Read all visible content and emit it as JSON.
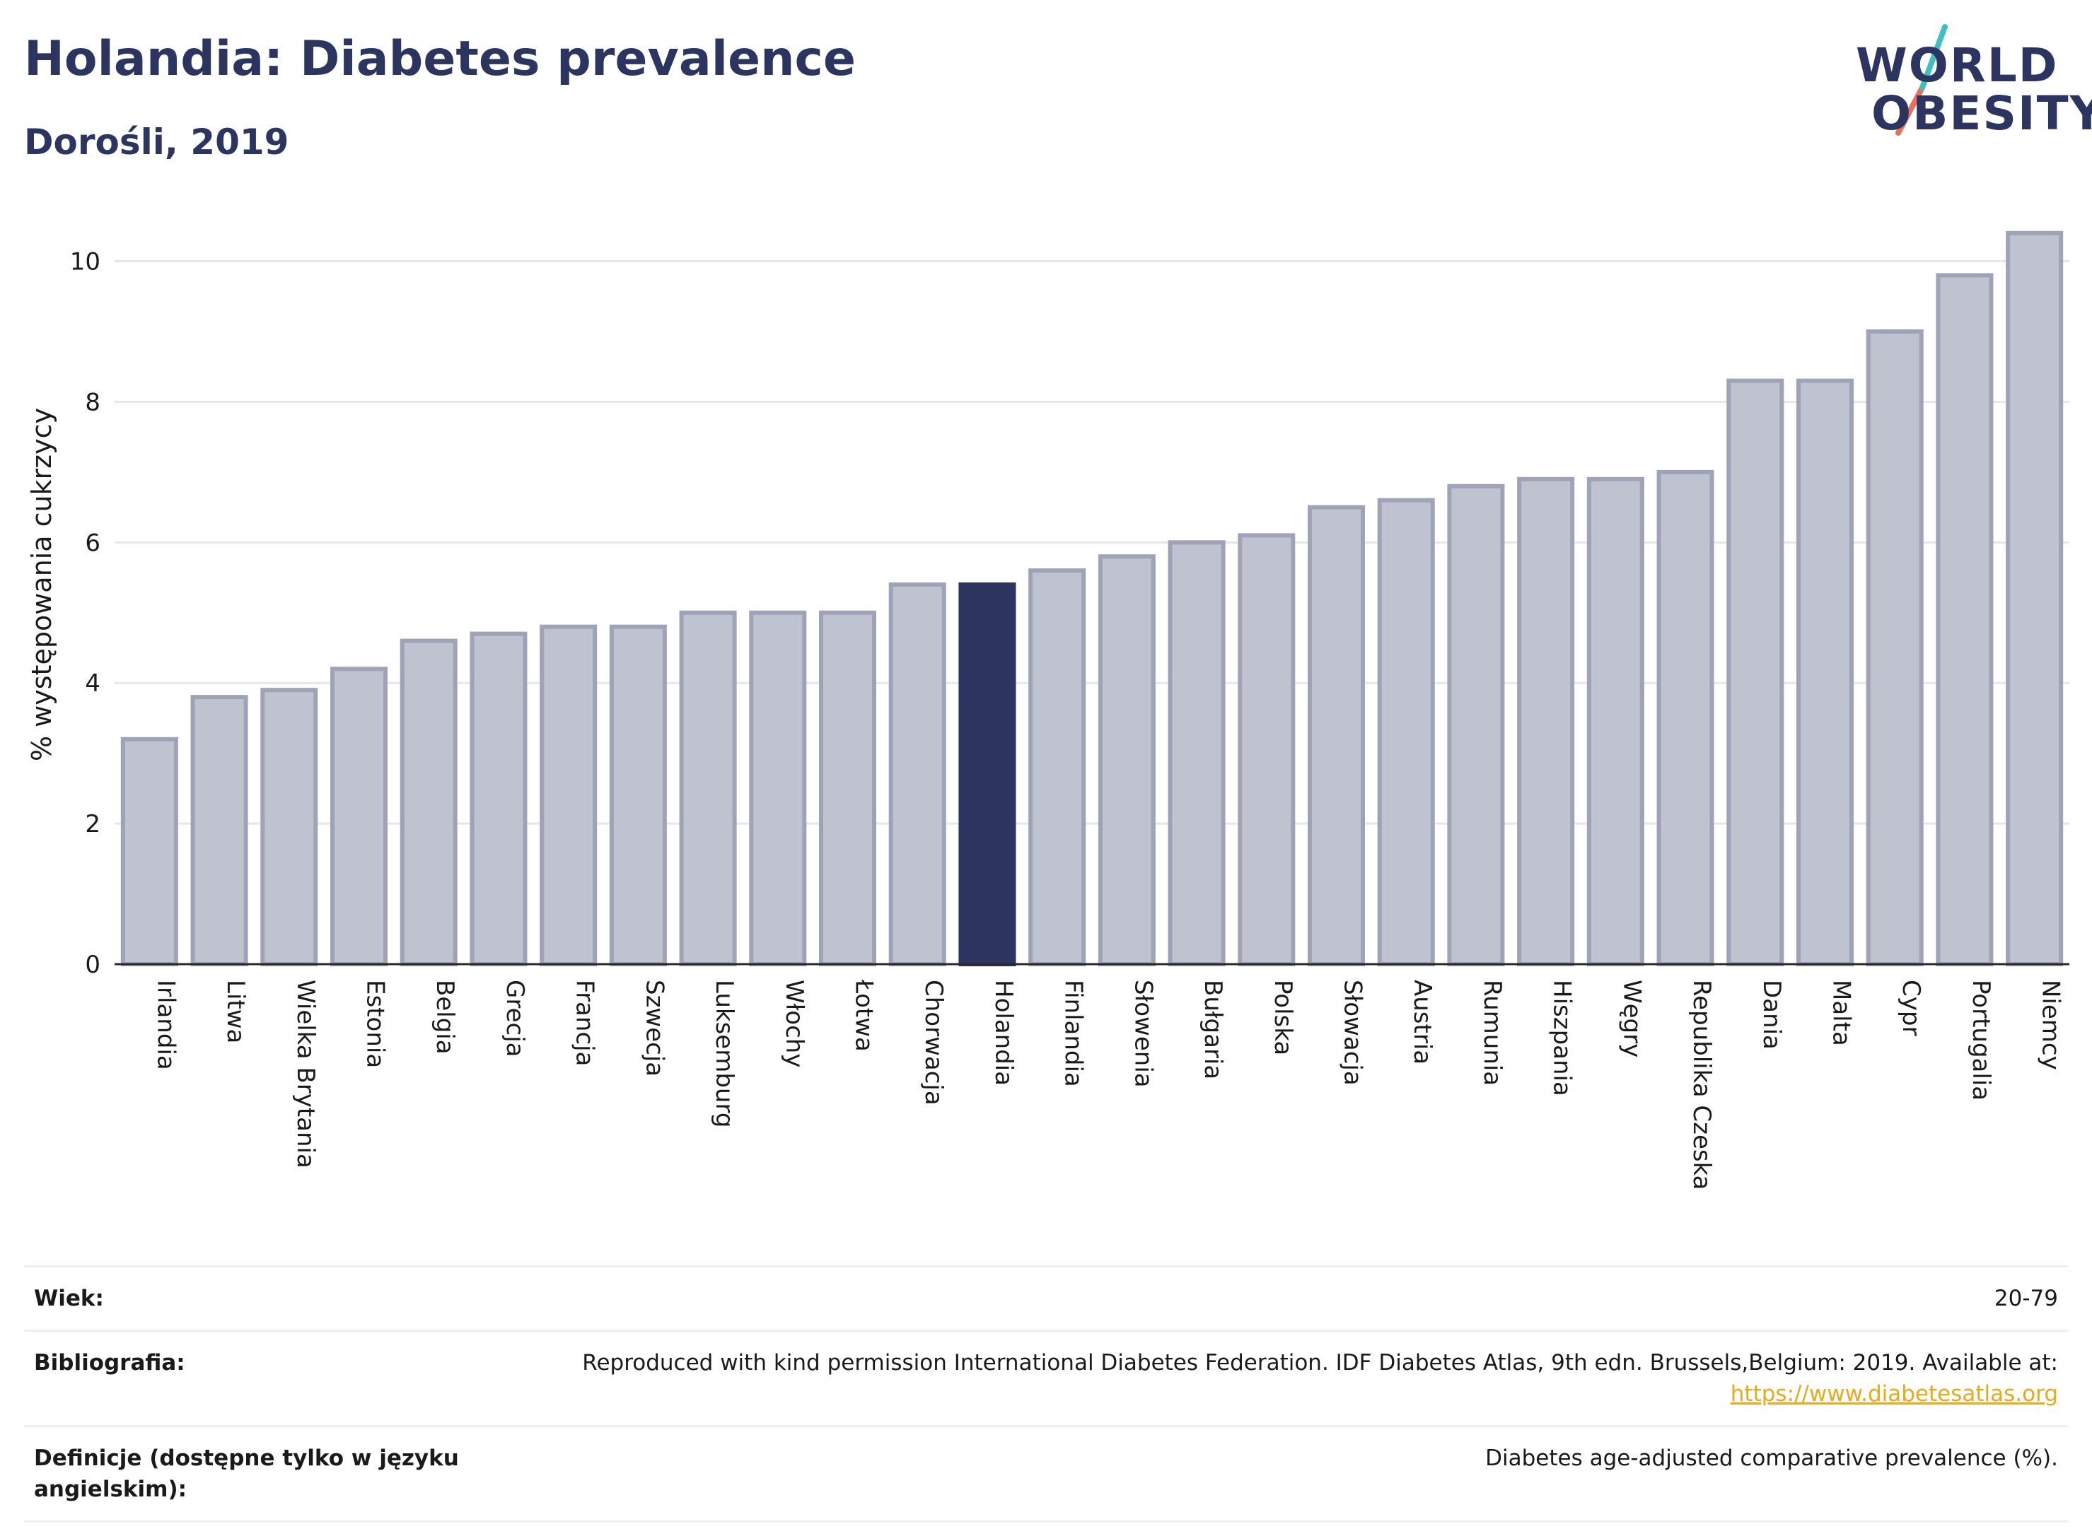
{
  "header": {
    "title": "Holandia: Diabetes prevalence",
    "subtitle": "Dorośli, 2019"
  },
  "logo": {
    "line1": "WORLD",
    "line2": "OBESITY",
    "colors": {
      "navy": "#2b3560",
      "teal": "#3fbfbf",
      "coral": "#e8705d"
    }
  },
  "chart_data": {
    "type": "bar",
    "ylabel": "% występowania cukrzycy",
    "ylim": [
      0,
      10.8
    ],
    "yticks": [
      0,
      2,
      4,
      6,
      8,
      10
    ],
    "grid": true,
    "highlight": "Holandia",
    "colors": {
      "bar": "#bfc2cf",
      "bar_border": "#9ea3b8",
      "highlight": "#2b3560",
      "grid": "#e6e7ec"
    },
    "categories": [
      "Irlandia",
      "Litwa",
      "Wielka Brytania",
      "Estonia",
      "Belgia",
      "Grecja",
      "Francja",
      "Szwecja",
      "Luksemburg",
      "Włochy",
      "Łotwa",
      "Chorwacja",
      "Holandia",
      "Finlandia",
      "Słowenia",
      "Bułgaria",
      "Polska",
      "Słowacja",
      "Austria",
      "Rumunia",
      "Hiszpania",
      "Węgry",
      "Republika Czeska",
      "Dania",
      "Malta",
      "Cypr",
      "Portugalia",
      "Niemcy"
    ],
    "values": [
      3.2,
      3.8,
      3.9,
      4.2,
      4.6,
      4.7,
      4.8,
      4.8,
      5.0,
      5.0,
      5.0,
      5.4,
      5.4,
      5.6,
      5.8,
      6.0,
      6.1,
      6.5,
      6.6,
      6.8,
      6.9,
      6.9,
      7.0,
      8.3,
      8.3,
      9.0,
      9.8,
      10.4
    ]
  },
  "info": {
    "age_label": "Wiek:",
    "age_value": "20-79",
    "bib_label": "Bibliografia:",
    "bib_text": "Reproduced with kind permission International Diabetes Federation. IDF Diabetes Atlas, 9th edn. Brussels,Belgium: 2019. Available at:",
    "bib_link": "https://www.diabetesatlas.org",
    "def_label": "Definicje (dostępne tylko w języku angielskim):",
    "def_value": "Diabetes age-adjusted comparative prevalence (%)."
  }
}
